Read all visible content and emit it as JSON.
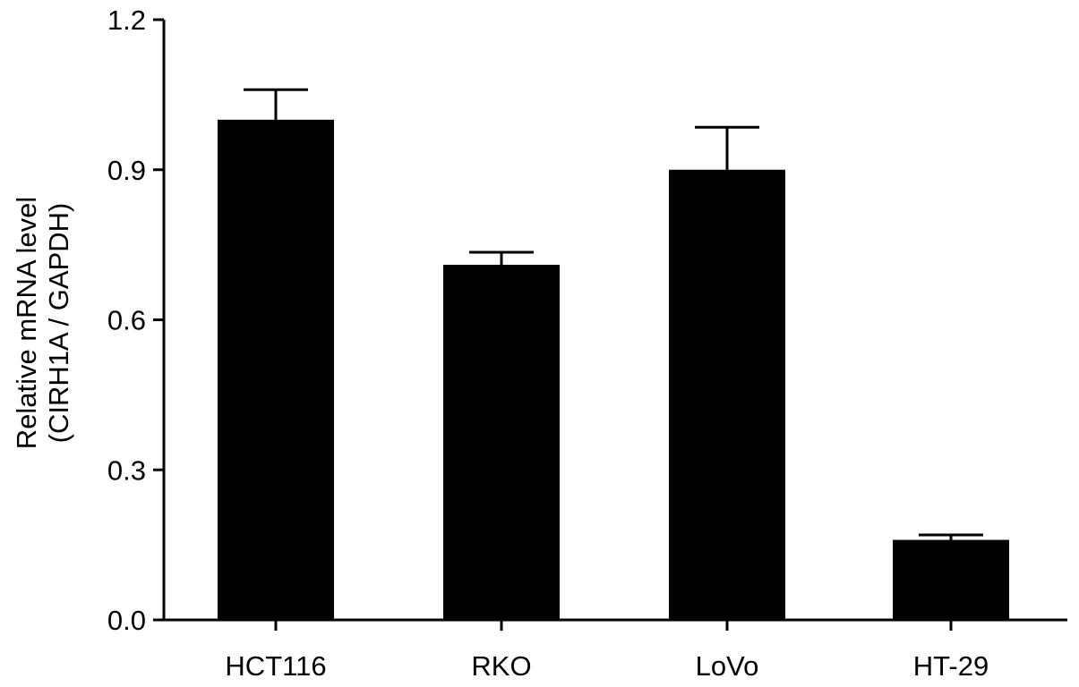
{
  "chart_data": {
    "type": "bar",
    "categories": [
      "HCT116",
      "RKO",
      "LoVo",
      "HT-29"
    ],
    "values": [
      1.0,
      0.71,
      0.9,
      0.16
    ],
    "error_upper": [
      0.06,
      0.025,
      0.085,
      0.01
    ],
    "ylabel_line1": "Relative mRNA level",
    "ylabel_line2": "(CIRH1A / GAPDH)",
    "ylim": [
      0,
      1.2
    ],
    "yticks": [
      0.0,
      0.3,
      0.6,
      0.9,
      1.2
    ],
    "ytick_labels": [
      "0.0",
      "0.3",
      "0.6",
      "0.9",
      "1.2"
    ],
    "grid": false,
    "bar_color": "#000000"
  }
}
